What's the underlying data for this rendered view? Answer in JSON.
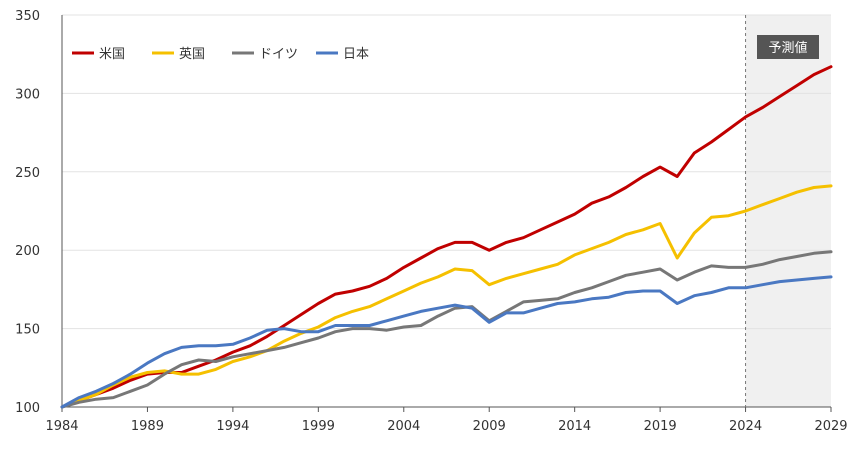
{
  "chart_data": {
    "type": "line",
    "title": "",
    "xlabel": "",
    "ylabel": "",
    "x": [
      1984,
      1985,
      1986,
      1987,
      1988,
      1989,
      1990,
      1991,
      1992,
      1993,
      1994,
      1995,
      1996,
      1997,
      1998,
      1999,
      2000,
      2001,
      2002,
      2003,
      2004,
      2005,
      2006,
      2007,
      2008,
      2009,
      2010,
      2011,
      2012,
      2013,
      2014,
      2015,
      2016,
      2017,
      2018,
      2019,
      2020,
      2021,
      2022,
      2023,
      2024,
      2025,
      2026,
      2027,
      2028,
      2029
    ],
    "xlim": [
      1984,
      2029
    ],
    "ylim": [
      100,
      350
    ],
    "x_ticks": [
      1984,
      1989,
      1994,
      1999,
      2004,
      2009,
      2014,
      2019,
      2024,
      2029
    ],
    "y_ticks": [
      100,
      150,
      200,
      250,
      300,
      350
    ],
    "x_tick_labels": [
      "1984",
      "1989",
      "1994",
      "1999",
      "2004",
      "2009",
      "2014",
      "2019",
      "2024",
      "2029"
    ],
    "y_tick_labels": [
      "100",
      "150",
      "200",
      "250",
      "300",
      "350"
    ],
    "forecast_start": 2024,
    "forecast_label": "予測値",
    "legend_position": "top-left",
    "series": [
      {
        "name": "米国",
        "color": "#c00000",
        "values": [
          100,
          104,
          108,
          112,
          117,
          121,
          122,
          122,
          126,
          130,
          135,
          139,
          145,
          152,
          159,
          166,
          172,
          174,
          177,
          182,
          189,
          195,
          201,
          205,
          205,
          200,
          205,
          208,
          213,
          218,
          223,
          230,
          234,
          240,
          247,
          253,
          247,
          262,
          269,
          277,
          285,
          291,
          298,
          305,
          312,
          317
        ]
      },
      {
        "name": "英国",
        "color": "#f5c000",
        "values": [
          100,
          104,
          108,
          114,
          119,
          122,
          123,
          121,
          121,
          124,
          129,
          132,
          136,
          142,
          147,
          151,
          157,
          161,
          164,
          169,
          174,
          179,
          183,
          188,
          187,
          178,
          182,
          185,
          188,
          191,
          197,
          201,
          205,
          210,
          213,
          217,
          195,
          211,
          221,
          222,
          225,
          229,
          233,
          237,
          240,
          241
        ]
      },
      {
        "name": "ドイツ",
        "color": "#777777",
        "values": [
          100,
          103,
          105,
          106,
          110,
          114,
          121,
          127,
          130,
          129,
          132,
          134,
          136,
          138,
          141,
          144,
          148,
          150,
          150,
          149,
          151,
          152,
          158,
          163,
          164,
          155,
          161,
          167,
          168,
          169,
          173,
          176,
          180,
          184,
          186,
          188,
          181,
          186,
          190,
          189,
          189,
          191,
          194,
          196,
          198,
          199
        ]
      },
      {
        "name": "日本",
        "color": "#4a78c2",
        "values": [
          100,
          106,
          110,
          115,
          121,
          128,
          134,
          138,
          139,
          139,
          140,
          144,
          149,
          150,
          148,
          148,
          152,
          152,
          152,
          155,
          158,
          161,
          163,
          165,
          163,
          154,
          160,
          160,
          163,
          166,
          167,
          169,
          170,
          173,
          174,
          174,
          166,
          171,
          173,
          176,
          176,
          178,
          180,
          181,
          182,
          183
        ]
      }
    ]
  }
}
